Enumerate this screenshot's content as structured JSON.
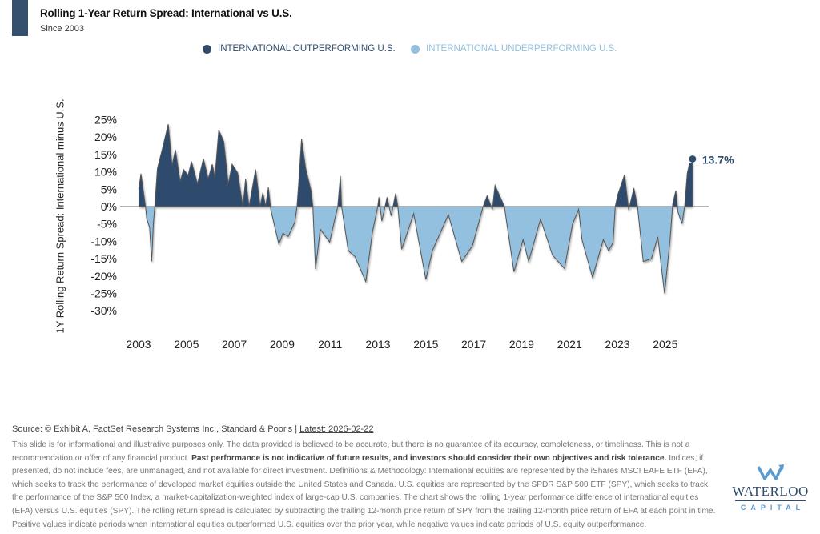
{
  "header": {
    "title": "Rolling 1-Year Return Spread: International vs U.S.",
    "subtitle": "Since 2003"
  },
  "colors": {
    "accent": "#35506f",
    "positive": "#2f4b6e",
    "negative": "#93c0de",
    "line": "#555555"
  },
  "chart_data": {
    "type": "area",
    "title": "Rolling 1-Year Return Spread: International vs U.S.",
    "subtitle": "Since 2003",
    "xlabel": "",
    "ylabel": "1Y Rolling Return Spread: International minus U.S.",
    "xlim": [
      2002.7,
      2026.6
    ],
    "ylim": [
      -30,
      25
    ],
    "x_ticks": [
      "2003",
      "2005",
      "2007",
      "2009",
      "2011",
      "2013",
      "2015",
      "2017",
      "2019",
      "2021",
      "2023",
      "2025"
    ],
    "x_tick_values": [
      2003,
      2005,
      2007,
      2009,
      2011,
      2013,
      2015,
      2017,
      2019,
      2021,
      2023,
      2025
    ],
    "y_ticks": [
      "25%",
      "20%",
      "15%",
      "10%",
      "5%",
      "0%",
      "-5%",
      "-10%",
      "-15%",
      "-20%",
      "-25%",
      "-30%"
    ],
    "y_tick_values": [
      25,
      20,
      15,
      10,
      5,
      0,
      -5,
      -10,
      -15,
      -20,
      -25,
      -30
    ],
    "legend": [
      {
        "label": "INTERNATIONAL OUTPERFORMING U.S.",
        "color": "#2f4b6e"
      },
      {
        "label": "INTERNATIONAL UNDERPERFORMING U.S.",
        "color": "#93c0de"
      }
    ],
    "legend_position": "top-center",
    "grid": false,
    "latest_label": "13.7%",
    "series": [
      {
        "name": "International minus U.S. (%)",
        "points": [
          [
            2003.01,
            5
          ],
          [
            2003.1,
            9.5
          ],
          [
            2003.29,
            0
          ],
          [
            2003.34,
            -3.5
          ],
          [
            2003.46,
            -6
          ],
          [
            2003.55,
            -15.8
          ],
          [
            2003.62,
            -5
          ],
          [
            2003.68,
            0
          ],
          [
            2003.79,
            11
          ],
          [
            2004.01,
            17
          ],
          [
            2004.24,
            23.7
          ],
          [
            2004.4,
            11.8
          ],
          [
            2004.54,
            16.4
          ],
          [
            2004.74,
            7.2
          ],
          [
            2004.88,
            10.7
          ],
          [
            2005.07,
            9
          ],
          [
            2005.21,
            13
          ],
          [
            2005.46,
            6.5
          ],
          [
            2005.71,
            13.8
          ],
          [
            2005.91,
            8
          ],
          [
            2006.08,
            12.2
          ],
          [
            2006.19,
            8.5
          ],
          [
            2006.35,
            22
          ],
          [
            2006.56,
            18.7
          ],
          [
            2006.75,
            6.5
          ],
          [
            2006.91,
            12.2
          ],
          [
            2007.14,
            9.7
          ],
          [
            2007.36,
            0
          ],
          [
            2007.47,
            8
          ],
          [
            2007.62,
            0
          ],
          [
            2007.89,
            10.7
          ],
          [
            2008.08,
            0
          ],
          [
            2008.19,
            4
          ],
          [
            2008.31,
            0
          ],
          [
            2008.42,
            5.5
          ],
          [
            2008.53,
            -1
          ],
          [
            2008.86,
            -10.8
          ],
          [
            2009.03,
            -7.7
          ],
          [
            2009.25,
            -8.6
          ],
          [
            2009.53,
            -4.5
          ],
          [
            2009.62,
            0
          ],
          [
            2009.7,
            7.6
          ],
          [
            2009.81,
            19.5
          ],
          [
            2009.98,
            11
          ],
          [
            2010.2,
            4.7
          ],
          [
            2010.28,
            0
          ],
          [
            2010.39,
            -18
          ],
          [
            2010.59,
            -6.5
          ],
          [
            2010.98,
            -10.2
          ],
          [
            2011.2,
            -3.5
          ],
          [
            2011.32,
            0
          ],
          [
            2011.43,
            8.8
          ],
          [
            2011.48,
            0
          ],
          [
            2011.76,
            -12.7
          ],
          [
            2012.04,
            -14.4
          ],
          [
            2012.49,
            -21.6
          ],
          [
            2012.77,
            -7.3
          ],
          [
            2012.99,
            0
          ],
          [
            2013.04,
            2.7
          ],
          [
            2013.16,
            -4.2
          ],
          [
            2013.38,
            2.7
          ],
          [
            2013.55,
            -2.7
          ],
          [
            2013.74,
            3.8
          ],
          [
            2013.83,
            0
          ],
          [
            2013.99,
            -12.3
          ],
          [
            2014.49,
            -2
          ],
          [
            2015.0,
            -21
          ],
          [
            2015.27,
            -12.7
          ],
          [
            2015.94,
            -2.3
          ],
          [
            2016.5,
            -15.8
          ],
          [
            2016.95,
            -11.2
          ],
          [
            2017.39,
            0
          ],
          [
            2017.56,
            3.1
          ],
          [
            2017.78,
            -0.8
          ],
          [
            2017.89,
            6.1
          ],
          [
            2018.28,
            0
          ],
          [
            2018.68,
            -18.8
          ],
          [
            2019.06,
            -9.5
          ],
          [
            2019.29,
            -15.8
          ],
          [
            2019.79,
            -3.6
          ],
          [
            2020.29,
            -14
          ],
          [
            2020.79,
            -17.8
          ],
          [
            2021.13,
            -4.9
          ],
          [
            2021.38,
            -0.8
          ],
          [
            2021.52,
            -9.5
          ],
          [
            2021.96,
            -20.4
          ],
          [
            2022.41,
            -9.5
          ],
          [
            2022.63,
            -12.7
          ],
          [
            2022.82,
            -10.4
          ],
          [
            2022.91,
            0
          ],
          [
            2023.02,
            3.5
          ],
          [
            2023.3,
            9.2
          ],
          [
            2023.47,
            -1
          ],
          [
            2023.69,
            5.3
          ],
          [
            2023.84,
            0
          ],
          [
            2024.08,
            -15.8
          ],
          [
            2024.42,
            -15
          ],
          [
            2024.69,
            -8.7
          ],
          [
            2024.97,
            -25
          ],
          [
            2025.2,
            -9.5
          ],
          [
            2025.31,
            0.7
          ],
          [
            2025.44,
            4.6
          ],
          [
            2025.53,
            -1.5
          ],
          [
            2025.7,
            -4.9
          ],
          [
            2025.81,
            0
          ],
          [
            2025.92,
            9.6
          ],
          [
            2026.03,
            13
          ],
          [
            2026.14,
            13.7
          ]
        ]
      }
    ]
  },
  "footer": {
    "source": "Source: © Exhibit A, FactSet Research Systems Inc., Standard & Poor's | ",
    "latest": "Latest: 2026-02-22",
    "disclaimer_pre": "This slide is for informational and illustrative purposes only. The data provided is believed to be accurate, but there is no guarantee of its accuracy, completeness, or timeliness. This is not a recommendation or offer of any financial product. ",
    "disclaimer_bold": "Past performance is not indicative of future results, and investors should consider their own objectives and risk tolerance.",
    "disclaimer_post": " Indices, if presented, do not include fees, are unmanaged, and not available for direct investment. Definitions & Methodology: International equities are represented by the iShares MSCI EAFE ETF (EFA), which seeks to track the performance of developed market equities outside the United States and Canada. U.S. equities are represented by the SPDR S&P 500 ETF (SPY), which seeks to track the performance of the S&P 500 Index, a market-capitalization-weighted index of large-cap U.S. companies. The chart shows the rolling 1-year performance difference of international equities (EFA) versus U.S. equities (SPY). The rolling return spread is calculated by subtracting the trailing 12-month price return of SPY from the trailing 12-month price return of EFA at each point in time. Positive values indicate periods when international equities outperformed U.S. equities over the prior year, while negative values indicate periods of U.S. equity outperformance."
  },
  "logo": {
    "name": "WATERLOO",
    "sub": "CAPITAL"
  }
}
